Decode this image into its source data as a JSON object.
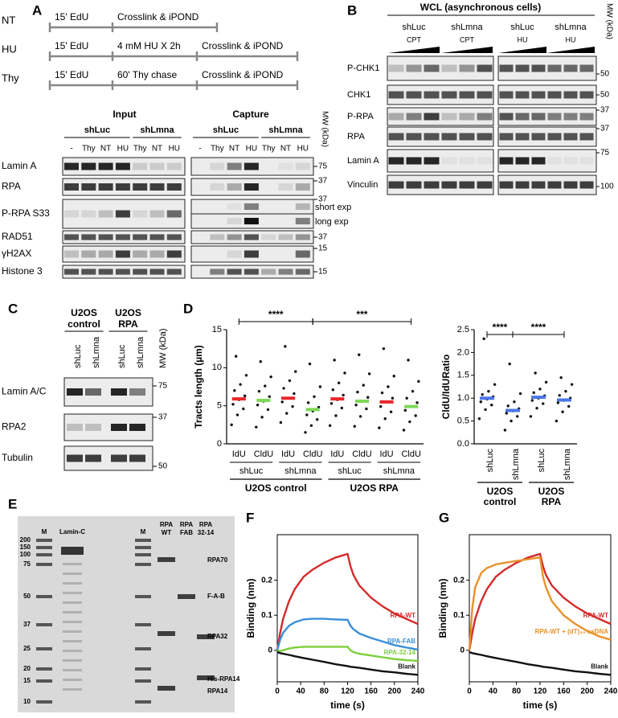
{
  "panel_labels": [
    "A",
    "B",
    "C",
    "D",
    "E",
    "F",
    "G"
  ],
  "panel_a": {
    "schemes": [
      {
        "name": "NT",
        "steps": [
          "15' EdU",
          "Crosslink & iPOND"
        ]
      },
      {
        "name": "HU",
        "steps": [
          "15' EdU",
          "4 mM HU X 2h",
          "Crosslink & iPOND"
        ]
      },
      {
        "name": "Thy",
        "steps": [
          "15' EdU",
          "60' Thy chase",
          "Crosslink & iPOND"
        ]
      }
    ],
    "input_title": "Input",
    "capture_title": "Capture",
    "groups": [
      "shLuc",
      "shLmna"
    ],
    "lanes": [
      "-",
      "Thy",
      "NT",
      "HU",
      "Thy",
      "NT",
      "HU"
    ],
    "capture_lanes": [
      "-",
      "Thy",
      "NT",
      "HU",
      "Thy",
      "NT",
      "HU"
    ],
    "mw_label": "MW (kDa)",
    "rows": [
      "Lamin A",
      "RPA",
      "P-RPA S33",
      "RAD51",
      "γH2AX",
      "Histone 3"
    ],
    "markers": [
      75,
      37,
      37,
      37,
      15,
      15
    ],
    "exposures": [
      "short exp",
      "long exp"
    ]
  },
  "panel_b": {
    "title": "WCL (asynchronous cells)",
    "groups": [
      "shLuc",
      "shLmna",
      "shLuc",
      "shLmna"
    ],
    "treatments": [
      "CPT",
      "CPT",
      "HU",
      "HU"
    ],
    "mw_label": "MW (kDa)",
    "rows": [
      "P-CHK1",
      "CHK1",
      "P-RPA",
      "RPA",
      "Lamin A",
      "Vinculin"
    ],
    "markers": [
      50,
      50,
      37,
      37,
      75,
      100
    ]
  },
  "panel_c": {
    "groups": [
      [
        "U2OS",
        "control"
      ],
      [
        "U2OS",
        "RPA"
      ]
    ],
    "lanes": [
      "shLuc",
      "shLmna",
      "shLuc",
      "shLmna"
    ],
    "mw_label": "MW (kDa)",
    "rows": [
      "Lamin A/C",
      "RPA2",
      "Tubulin"
    ],
    "markers": [
      75,
      37,
      50
    ]
  },
  "panel_e": {
    "lanes": [
      [
        "M"
      ],
      [
        "Lamin-C"
      ],
      [
        "M"
      ],
      [
        "RPA",
        "WT"
      ],
      [
        "RPA",
        "FAB"
      ],
      [
        "RPA",
        "32-14"
      ]
    ],
    "ladder": [
      200,
      150,
      100,
      75,
      50,
      37,
      25,
      20,
      15,
      10
    ],
    "band_labels": [
      "RPA70",
      "F-A-B",
      "RPA32",
      "His-RPA14",
      "RPA14"
    ]
  },
  "chart_data": [
    {
      "type": "strip",
      "ylabel": "Tracts length (µm)",
      "ylim": [
        0,
        15
      ],
      "yticks": [
        0,
        5,
        10,
        15
      ],
      "categories": [
        "IdU",
        "CldU",
        "IdU",
        "CldU",
        "IdU",
        "CldU",
        "IdU",
        "CldU"
      ],
      "subgroups": [
        "shLuc",
        "shLmna",
        "shLuc",
        "shLmna"
      ],
      "groups": [
        "U2OS control",
        "U2OS RPA"
      ],
      "significance": [
        "****",
        "***"
      ],
      "colors": [
        "#e8272a",
        "#7ed957",
        "#e8272a",
        "#7ed957",
        "#e8272a",
        "#7ed957",
        "#e8272a",
        "#7ed957"
      ],
      "means": [
        5.9,
        5.7,
        6.0,
        4.5,
        5.9,
        5.6,
        5.5,
        4.9
      ],
      "points": [
        [
          2.5,
          3.8,
          4.6,
          5.2,
          5.8,
          6.3,
          7.0,
          7.8,
          9.0,
          11.5
        ],
        [
          2.2,
          3.5,
          4.5,
          5.1,
          5.6,
          6.2,
          6.9,
          7.6,
          8.8,
          10.8
        ],
        [
          2.8,
          4.0,
          4.9,
          5.5,
          6.0,
          6.6,
          7.3,
          8.3,
          9.5,
          12.8
        ],
        [
          1.5,
          2.4,
          3.2,
          3.8,
          4.3,
          4.8,
          5.4,
          6.2,
          7.5,
          10.5
        ],
        [
          2.4,
          3.7,
          4.7,
          5.3,
          5.8,
          6.4,
          7.1,
          8.0,
          9.3,
          11.0
        ],
        [
          2.3,
          3.6,
          4.6,
          5.1,
          5.6,
          6.1,
          6.8,
          7.7,
          9.2,
          11.7
        ],
        [
          2.1,
          3.3,
          4.2,
          4.9,
          5.5,
          6.0,
          6.7,
          7.5,
          8.9,
          12.5
        ],
        [
          1.8,
          2.9,
          3.7,
          4.4,
          4.9,
          5.4,
          6.0,
          6.9,
          8.2,
          11.0
        ]
      ]
    },
    {
      "type": "strip",
      "ylabel": "CldU/IdURatio",
      "ylim": [
        0,
        2.5
      ],
      "yticks": [
        {
          "value": 0,
          "label": "0.0"
        },
        0.5,
        {
          "value": 1,
          "label": "1.0"
        },
        1.5,
        {
          "value": 2,
          "label": "2.0"
        },
        2.5
      ],
      "categories": [
        "shLuc",
        "shLmna",
        "shLuc",
        "shLmna"
      ],
      "groups": [
        [
          "U2OS",
          "control"
        ],
        [
          "U2OS",
          "RPA"
        ]
      ],
      "significance": [
        "****",
        "****"
      ],
      "color": "#4b74e6",
      "means": [
        1.0,
        0.73,
        1.02,
        0.96
      ],
      "points": [
        [
          0.55,
          0.75,
          0.85,
          0.92,
          0.98,
          1.03,
          1.08,
          1.15,
          1.3,
          2.3
        ],
        [
          0.3,
          0.5,
          0.6,
          0.67,
          0.72,
          0.77,
          0.83,
          0.92,
          1.1,
          1.75
        ],
        [
          0.6,
          0.78,
          0.88,
          0.95,
          1.0,
          1.05,
          1.12,
          1.2,
          1.35,
          1.55
        ],
        [
          0.5,
          0.7,
          0.82,
          0.9,
          0.95,
          1.0,
          1.06,
          1.15,
          1.3,
          1.45
        ]
      ]
    },
    {
      "type": "line",
      "xlabel": "time (s)",
      "ylabel": "Binding (nm)",
      "xlim": [
        0,
        240
      ],
      "xticks": [
        0,
        40,
        80,
        120,
        160,
        200,
        240
      ],
      "ylim": [
        -0.09,
        0.33
      ],
      "yticks": [
        0,
        0.1,
        0.2
      ],
      "x": [
        0,
        5,
        10,
        20,
        30,
        45,
        60,
        80,
        100,
        120,
        125,
        130,
        140,
        160,
        180,
        200,
        220,
        240
      ],
      "series": [
        {
          "name": "RPA-WT",
          "color": "#d42a2a",
          "values": [
            0,
            0.05,
            0.09,
            0.14,
            0.175,
            0.21,
            0.23,
            0.25,
            0.265,
            0.275,
            0.24,
            0.215,
            0.185,
            0.15,
            0.125,
            0.105,
            0.09,
            0.075
          ]
        },
        {
          "name": "RPA-FAB",
          "color": "#3a8fd9",
          "values": [
            0,
            0.03,
            0.05,
            0.07,
            0.08,
            0.088,
            0.09,
            0.09,
            0.088,
            0.087,
            0.07,
            0.06,
            0.048,
            0.035,
            0.025,
            0.015,
            0.008,
            0.002
          ]
        },
        {
          "name": "RPA-32-14",
          "color": "#7ccf3a",
          "values": [
            0,
            -0.002,
            0,
            0.005,
            0.008,
            0.01,
            0.01,
            0.01,
            0.01,
            0.01,
            0,
            -0.005,
            -0.01,
            -0.015,
            -0.02,
            -0.025,
            -0.028,
            -0.03
          ]
        },
        {
          "name": "Blank",
          "color": "#111111",
          "values": [
            -0.005,
            -0.008,
            -0.01,
            -0.013,
            -0.017,
            -0.022,
            -0.027,
            -0.033,
            -0.04,
            -0.045,
            -0.047,
            -0.048,
            -0.05,
            -0.055,
            -0.06,
            -0.063,
            -0.067,
            -0.07
          ]
        }
      ]
    },
    {
      "type": "line",
      "xlabel": "time (s)",
      "ylabel": "Binding (nm)",
      "xlim": [
        0,
        240
      ],
      "xticks": [
        0,
        40,
        80,
        120,
        160,
        200,
        240
      ],
      "ylim": [
        -0.09,
        0.33
      ],
      "yticks": [
        0,
        0.1,
        0.2
      ],
      "x": [
        0,
        5,
        10,
        20,
        30,
        45,
        60,
        80,
        100,
        120,
        125,
        130,
        140,
        160,
        180,
        200,
        220,
        240
      ],
      "series": [
        {
          "name": "RPA-WT",
          "color": "#d42a2a",
          "values": [
            0,
            0.05,
            0.09,
            0.14,
            0.175,
            0.21,
            0.23,
            0.25,
            0.265,
            0.275,
            0.24,
            0.215,
            0.185,
            0.15,
            0.125,
            0.105,
            0.09,
            0.075
          ]
        },
        {
          "name": "RPA-WT + (dT)₃₀ ssDNA",
          "color": "#e8912a",
          "values": [
            0,
            0.12,
            0.18,
            0.22,
            0.235,
            0.245,
            0.25,
            0.255,
            0.26,
            0.265,
            0.21,
            0.18,
            0.14,
            0.1,
            0.075,
            0.055,
            0.04,
            0.03
          ]
        },
        {
          "name": "Blank",
          "color": "#111111",
          "values": [
            -0.005,
            -0.008,
            -0.01,
            -0.013,
            -0.017,
            -0.022,
            -0.027,
            -0.033,
            -0.04,
            -0.045,
            -0.047,
            -0.048,
            -0.05,
            -0.055,
            -0.06,
            -0.063,
            -0.067,
            -0.07
          ]
        }
      ]
    }
  ]
}
